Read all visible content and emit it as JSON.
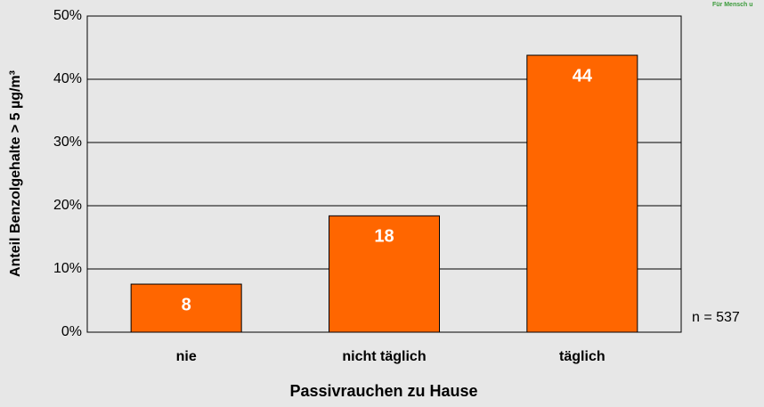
{
  "chart_data": {
    "type": "bar",
    "categories": [
      "nie",
      "nicht täglich",
      "täglich"
    ],
    "values": [
      7.6,
      18.4,
      43.8
    ],
    "value_labels": [
      "8",
      "18",
      "44"
    ],
    "color": "#ff6600",
    "ylim": [
      0,
      50
    ],
    "yticks": [
      {
        "value": 0,
        "label": "0%"
      },
      {
        "value": 10,
        "label": "10%"
      },
      {
        "value": 20,
        "label": "20%"
      },
      {
        "value": 30,
        "label": "30%"
      },
      {
        "value": 40,
        "label": "40%"
      },
      {
        "value": 50,
        "label": "50%"
      }
    ],
    "grid": true,
    "xlabel": "Passivrauchen zu Hause",
    "ylabel": "Anteil Benzolgehalte > 5 µg/m³",
    "annotations": [
      "n = 537",
      "Für Mensch u"
    ]
  }
}
